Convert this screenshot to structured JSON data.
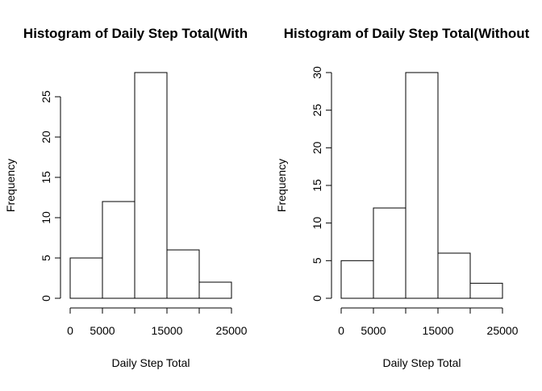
{
  "chart_data": [
    {
      "type": "bar",
      "title": "Histogram of Daily Step Total(With",
      "xlabel": "Daily Step Total",
      "ylabel": "Frequency",
      "bin_edges": [
        0,
        5000,
        10000,
        15000,
        20000,
        25000
      ],
      "values": [
        5,
        12,
        28,
        6,
        2
      ],
      "xticks": [
        0,
        5000,
        15000,
        25000
      ],
      "xlim": [
        0,
        25000
      ],
      "yticks": [
        0,
        5,
        10,
        15,
        20,
        25
      ],
      "ylim": [
        0,
        28
      ],
      "grid": false
    },
    {
      "type": "bar",
      "title": "Histogram of Daily Step Total(Without",
      "xlabel": "Daily Step Total",
      "ylabel": "Frequency",
      "bin_edges": [
        0,
        5000,
        10000,
        15000,
        20000,
        25000
      ],
      "values": [
        5,
        12,
        30,
        6,
        2
      ],
      "xticks": [
        0,
        5000,
        15000,
        25000
      ],
      "xlim": [
        0,
        25000
      ],
      "yticks": [
        0,
        5,
        10,
        15,
        20,
        25,
        30
      ],
      "ylim": [
        0,
        30
      ],
      "grid": false
    }
  ]
}
